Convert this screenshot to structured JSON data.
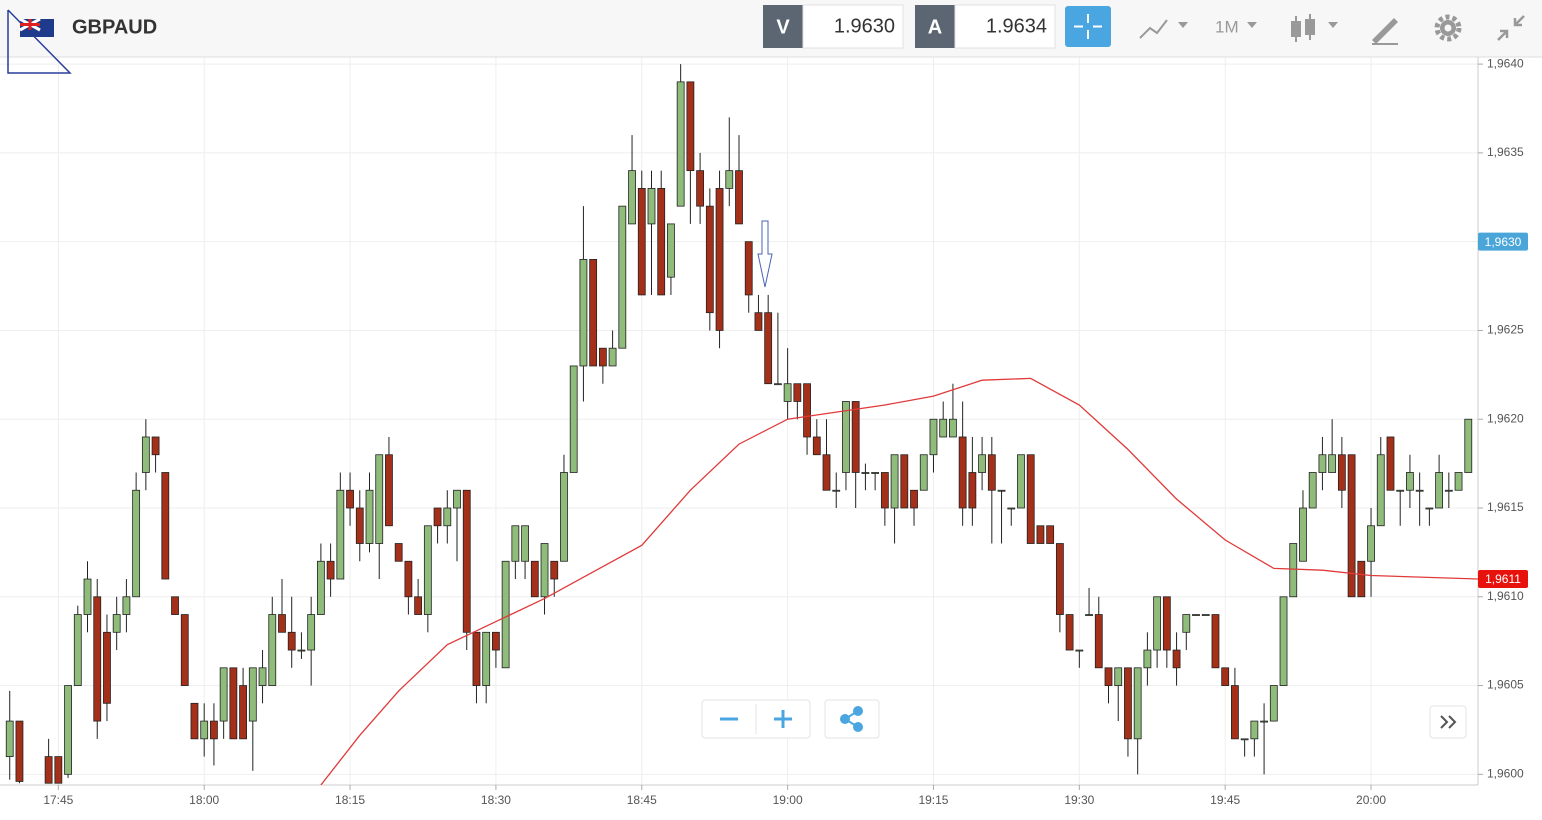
{
  "toolbar": {
    "symbol": "GBPAUD",
    "sell_label": "V",
    "sell_price": "1.9630",
    "buy_label": "A",
    "buy_price": "1.9634",
    "timeframe": "1M"
  },
  "chart_data": {
    "type": "candlestick",
    "up_color": "#8fbb7b",
    "down_color": "#a4301a",
    "grid": true,
    "ylim": [
      1.95994,
      1.96404
    ],
    "yticks": [
      {
        "value": 1.96,
        "label": "1,9600"
      },
      {
        "value": 1.9605,
        "label": "1,9605"
      },
      {
        "value": 1.961,
        "label": "1,9610"
      },
      {
        "value": 1.9615,
        "label": "1,9615"
      },
      {
        "value": 1.962,
        "label": "1,9620"
      },
      {
        "value": 1.9625,
        "label": "1,9625"
      },
      {
        "value": 1.963,
        "label": "1,9630"
      },
      {
        "value": 1.9635,
        "label": "1,9635"
      },
      {
        "value": 1.964,
        "label": "1,9640"
      }
    ],
    "xlim": [
      "17:39",
      "20:11"
    ],
    "xticks": [
      "17:45",
      "18:00",
      "18:15",
      "18:30",
      "18:45",
      "19:00",
      "19:15",
      "19:30",
      "19:45",
      "20:00"
    ],
    "x": [
      "17:40",
      "17:41",
      "17:44",
      "17:45",
      "17:46",
      "17:47",
      "17:48",
      "17:49",
      "17:50",
      "17:51",
      "17:52",
      "17:53",
      "17:54",
      "17:55",
      "17:56",
      "17:57",
      "17:58",
      "17:59",
      "18:00",
      "18:01",
      "18:02",
      "18:03",
      "18:04",
      "18:05",
      "18:06",
      "18:07",
      "18:08",
      "18:09",
      "18:10",
      "18:11",
      "18:12",
      "18:13",
      "18:14",
      "18:15",
      "18:16",
      "18:17",
      "18:18",
      "18:19",
      "18:20",
      "18:21",
      "18:22",
      "18:23",
      "18:24",
      "18:25",
      "18:26",
      "18:27",
      "18:28",
      "18:29",
      "18:30",
      "18:31",
      "18:32",
      "18:33",
      "18:34",
      "18:35",
      "18:36",
      "18:37",
      "18:38",
      "18:39",
      "18:40",
      "18:41",
      "18:42",
      "18:43",
      "18:44",
      "18:45",
      "18:46",
      "18:47",
      "18:48",
      "18:49",
      "18:50",
      "18:51",
      "18:52",
      "18:53",
      "18:54",
      "18:55",
      "18:56",
      "18:57",
      "18:58",
      "18:59",
      "19:00",
      "19:01",
      "19:02",
      "19:03",
      "19:04",
      "19:05",
      "19:06",
      "19:07",
      "19:08",
      "19:09",
      "19:10",
      "19:11",
      "19:12",
      "19:13",
      "19:14",
      "19:15",
      "19:16",
      "19:17",
      "19:18",
      "19:19",
      "19:20",
      "19:21",
      "19:22",
      "19:23",
      "19:24",
      "19:25",
      "19:26",
      "19:27",
      "19:28",
      "19:29",
      "19:30",
      "19:31",
      "19:32",
      "19:33",
      "19:34",
      "19:35",
      "19:36",
      "19:37",
      "19:38",
      "19:39",
      "19:40",
      "19:41",
      "19:42",
      "19:43",
      "19:44",
      "19:45",
      "19:46",
      "19:47",
      "19:48",
      "19:49",
      "19:50",
      "19:51",
      "19:52",
      "19:53",
      "19:54",
      "19:55",
      "19:56",
      "19:57",
      "19:58",
      "19:59",
      "20:00",
      "20:01",
      "20:02",
      "20:03",
      "20:04",
      "20:05",
      "20:06",
      "20:07",
      "20:08",
      "20:09",
      "20:10"
    ],
    "open": [
      1.9601,
      1.9603,
      1.9601,
      1.9601,
      1.96,
      1.9605,
      1.9609,
      1.961,
      1.9608,
      1.9608,
      1.9609,
      1.961,
      1.9617,
      1.9619,
      1.9617,
      1.961,
      1.9609,
      1.9604,
      1.9602,
      1.9603,
      1.9603,
      1.9606,
      1.9605,
      1.9603,
      1.9605,
      1.9605,
      1.9609,
      1.9608,
      1.9607,
      1.9607,
      1.9609,
      1.9612,
      1.9611,
      1.9616,
      1.9615,
      1.9613,
      1.9613,
      1.9618,
      1.9613,
      1.9612,
      1.961,
      1.9609,
      1.9615,
      1.9614,
      1.9615,
      1.9616,
      1.9608,
      1.9605,
      1.9608,
      1.9606,
      1.9612,
      1.9612,
      1.9612,
      1.961,
      1.9612,
      1.9612,
      1.9617,
      1.9623,
      1.9629,
      1.9624,
      1.9623,
      1.9624,
      1.9631,
      1.9633,
      1.9631,
      1.9633,
      1.9628,
      1.9632,
      1.9639,
      1.9634,
      1.9632,
      1.9633,
      1.9633,
      1.9634,
      1.963,
      1.9626,
      1.9626,
      1.9622,
      1.9621,
      1.9622,
      1.9622,
      1.9619,
      1.9618,
      1.9616,
      1.9617,
      1.9621,
      1.9617,
      1.9617,
      1.9617,
      1.9615,
      1.9618,
      1.9616,
      1.9616,
      1.9618,
      1.9619,
      1.9619,
      1.9619,
      1.9617,
      1.9617,
      1.9618,
      1.9616,
      1.9615,
      1.9615,
      1.9618,
      1.9614,
      1.9614,
      1.9613,
      1.9609,
      1.9607,
      1.9609,
      1.9609,
      1.9606,
      1.9605,
      1.9606,
      1.9602,
      1.9606,
      1.9607,
      1.961,
      1.9607,
      1.9608,
      1.9609,
      1.9609,
      1.9609,
      1.9606,
      1.9605,
      1.9602,
      1.9602,
      1.9603,
      1.9603,
      1.9605,
      1.961,
      1.9612,
      1.9615,
      1.9617,
      1.9617,
      1.9618,
      1.9618,
      1.9612,
      1.9612,
      1.9614,
      1.9619,
      1.9616,
      1.9616,
      1.9616,
      1.9615,
      1.9615,
      1.9616,
      1.9616,
      1.9617
    ],
    "high": [
      1.96047,
      1.9603,
      1.9602,
      1.9601,
      1.9605,
      1.96095,
      1.9612,
      1.9611,
      1.9609,
      1.961,
      1.9611,
      1.9617,
      1.962,
      1.9619,
      1.9617,
      1.961,
      1.9609,
      1.9604,
      1.9604,
      1.9604,
      1.9606,
      1.9606,
      1.9606,
      1.9606,
      1.9607,
      1.961,
      1.9611,
      1.961,
      1.9608,
      1.961,
      1.9613,
      1.9613,
      1.9617,
      1.9617,
      1.9616,
      1.9617,
      1.9618,
      1.9619,
      1.9613,
      1.9612,
      1.9611,
      1.9614,
      1.9615,
      1.9616,
      1.9616,
      1.9616,
      1.9608,
      1.9608,
      1.9608,
      1.9612,
      1.9614,
      1.9614,
      1.9612,
      1.9613,
      1.9612,
      1.9618,
      1.9623,
      1.9632,
      1.9629,
      1.9624,
      1.9625,
      1.9632,
      1.9636,
      1.9634,
      1.9634,
      1.9634,
      1.9631,
      1.964,
      1.9639,
      1.9635,
      1.9633,
      1.9634,
      1.9637,
      1.9636,
      1.963,
      1.9627,
      1.9627,
      1.9626,
      1.9624,
      1.9622,
      1.9622,
      1.962,
      1.962,
      1.9617,
      1.9621,
      1.9621,
      1.96175,
      1.9617,
      1.9617,
      1.9618,
      1.9618,
      1.9616,
      1.9618,
      1.962,
      1.9621,
      1.9622,
      1.9621,
      1.9619,
      1.9619,
      1.9619,
      1.9616,
      1.9615,
      1.9618,
      1.9618,
      1.9614,
      1.9614,
      1.9613,
      1.9609,
      1.9607,
      1.96105,
      1.961,
      1.9606,
      1.9606,
      1.9606,
      1.9606,
      1.9608,
      1.961,
      1.961,
      1.9608,
      1.9609,
      1.9609,
      1.9609,
      1.9609,
      1.9606,
      1.9606,
      1.9602,
      1.9603,
      1.9604,
      1.9605,
      1.961,
      1.9613,
      1.9616,
      1.9617,
      1.9619,
      1.962,
      1.9619,
      1.9618,
      1.9612,
      1.9615,
      1.9619,
      1.9619,
      1.9616,
      1.9618,
      1.9617,
      1.9615,
      1.9618,
      1.9617,
      1.9617,
      1.962
    ],
    "low": [
      1.95997,
      1.95995,
      1.95995,
      1.95995,
      1.95998,
      1.9605,
      1.9608,
      1.9602,
      1.9603,
      1.9607,
      1.9608,
      1.961,
      1.9616,
      1.9617,
      1.9611,
      1.9609,
      1.9605,
      1.9602,
      1.9601,
      1.96005,
      1.9602,
      1.9602,
      1.9602,
      1.96002,
      1.9604,
      1.9605,
      1.9608,
      1.9606,
      1.96065,
      1.9605,
      1.9609,
      1.961,
      1.9611,
      1.9614,
      1.9612,
      1.96125,
      1.9611,
      1.9614,
      1.9612,
      1.9609,
      1.9609,
      1.9608,
      1.9613,
      1.9613,
      1.9612,
      1.9607,
      1.9604,
      1.9604,
      1.9606,
      1.9606,
      1.9611,
      1.9611,
      1.961,
      1.9609,
      1.961,
      1.9612,
      1.9617,
      1.9621,
      1.9623,
      1.9622,
      1.9623,
      1.9624,
      1.9631,
      1.9627,
      1.9627,
      1.9627,
      1.9627,
      1.9632,
      1.9631,
      1.9631,
      1.9625,
      1.9624,
      1.9632,
      1.9631,
      1.9626,
      1.9625,
      1.9622,
      1.9622,
      1.962,
      1.962,
      1.9618,
      1.9618,
      1.9616,
      1.9615,
      1.9616,
      1.9615,
      1.9616,
      1.9616,
      1.9614,
      1.9613,
      1.9615,
      1.9614,
      1.9616,
      1.9617,
      1.9619,
      1.9619,
      1.9614,
      1.9614,
      1.9616,
      1.9613,
      1.9613,
      1.9614,
      1.9615,
      1.9613,
      1.9613,
      1.9613,
      1.9608,
      1.9607,
      1.9606,
      1.9609,
      1.9606,
      1.9604,
      1.9603,
      1.9601,
      1.96,
      1.9605,
      1.9606,
      1.9606,
      1.9605,
      1.9607,
      1.9609,
      1.9609,
      1.9606,
      1.9605,
      1.9602,
      1.9601,
      1.9601,
      1.96,
      1.9603,
      1.9605,
      1.961,
      1.9612,
      1.9615,
      1.9616,
      1.9617,
      1.9615,
      1.961,
      1.961,
      1.961,
      1.9614,
      1.9616,
      1.9614,
      1.9615,
      1.9614,
      1.9614,
      1.9615,
      1.9615,
      1.9616,
      1.9617
    ],
    "close": [
      1.9603,
      1.95996,
      1.95995,
      1.95995,
      1.9605,
      1.9609,
      1.9611,
      1.9603,
      1.9604,
      1.9609,
      1.961,
      1.9616,
      1.9619,
      1.9618,
      1.9611,
      1.9609,
      1.9605,
      1.9602,
      1.9603,
      1.9602,
      1.9606,
      1.9602,
      1.9602,
      1.9606,
      1.9606,
      1.9609,
      1.9608,
      1.9607,
      1.9607,
      1.9609,
      1.9612,
      1.9611,
      1.9616,
      1.9615,
      1.9613,
      1.9616,
      1.9618,
      1.9614,
      1.9612,
      1.961,
      1.9609,
      1.9614,
      1.9614,
      1.9615,
      1.9616,
      1.9608,
      1.9605,
      1.9608,
      1.9607,
      1.9612,
      1.9614,
      1.9614,
      1.961,
      1.9613,
      1.9611,
      1.9617,
      1.9623,
      1.9629,
      1.9623,
      1.9623,
      1.9624,
      1.9632,
      1.9634,
      1.9627,
      1.9633,
      1.9627,
      1.9631,
      1.9639,
      1.9634,
      1.9632,
      1.9626,
      1.9625,
      1.9634,
      1.9631,
      1.9627,
      1.9625,
      1.9622,
      1.9622,
      1.9622,
      1.9621,
      1.9619,
      1.9618,
      1.9616,
      1.9616,
      1.9621,
      1.9617,
      1.9617,
      1.9617,
      1.9615,
      1.9618,
      1.9615,
      1.9615,
      1.9618,
      1.962,
      1.962,
      1.962,
      1.9615,
      1.9615,
      1.9618,
      1.9616,
      1.9616,
      1.9615,
      1.9618,
      1.9613,
      1.9613,
      1.9613,
      1.9609,
      1.9607,
      1.9607,
      1.9609,
      1.9606,
      1.9605,
      1.9606,
      1.9602,
      1.9606,
      1.9607,
      1.961,
      1.9607,
      1.9606,
      1.9609,
      1.9609,
      1.9609,
      1.9606,
      1.9605,
      1.9602,
      1.9602,
      1.9603,
      1.9603,
      1.9605,
      1.961,
      1.9613,
      1.9615,
      1.9617,
      1.9618,
      1.9618,
      1.9616,
      1.961,
      1.961,
      1.9614,
      1.9618,
      1.9616,
      1.9616,
      1.9617,
      1.9616,
      1.9615,
      1.9617,
      1.9616,
      1.9617,
      1.962
    ],
    "moving_average": {
      "color": "#e03a3a",
      "x": [
        "18:12",
        "18:16",
        "18:20",
        "18:25",
        "18:30",
        "18:35",
        "18:40",
        "18:45",
        "18:50",
        "18:55",
        "19:00",
        "19:05",
        "19:10",
        "19:15",
        "19:20",
        "19:25",
        "19:30",
        "19:35",
        "19:40",
        "19:45",
        "19:50",
        "19:55",
        "20:00",
        "20:11"
      ],
      "values": [
        1.95994,
        1.96022,
        1.96047,
        1.96073,
        1.96086,
        1.96099,
        1.96114,
        1.96129,
        1.9616,
        1.96186,
        1.962,
        1.96204,
        1.96208,
        1.96213,
        1.96222,
        1.96223,
        1.96208,
        1.96183,
        1.96155,
        1.96132,
        1.96116,
        1.96115,
        1.96112,
        1.9611
      ]
    },
    "price_markers": [
      {
        "value": 1.963,
        "label": "1,9630",
        "color": "#4aa6d9"
      },
      {
        "value": 1.9611,
        "label": "1,9611",
        "color": "#e8120c"
      }
    ]
  }
}
